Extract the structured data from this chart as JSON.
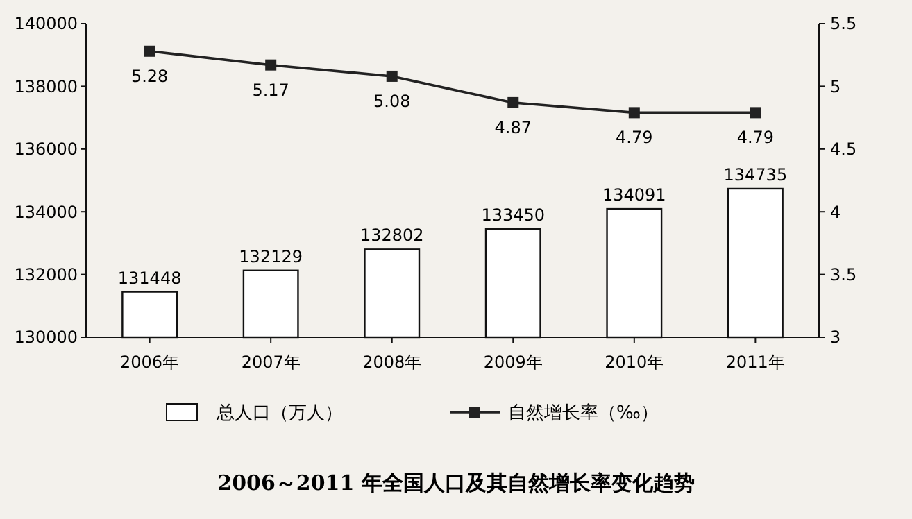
{
  "chart_data": {
    "type": "bar",
    "title": "2006～2011 年全国人口及其自然增长率变化趋势",
    "categories": [
      "2006年",
      "2007年",
      "2008年",
      "2009年",
      "2010年",
      "2011年"
    ],
    "series": [
      {
        "name": "总人口（万人）",
        "color": "#ffffff",
        "values": [
          131448,
          132129,
          132802,
          133450,
          134091,
          134735
        ]
      },
      {
        "name": "自然增长率（‰）",
        "type": "line",
        "axis": "y2",
        "color": "#222222",
        "values": [
          5.28,
          5.17,
          5.08,
          4.87,
          4.79,
          4.79
        ]
      }
    ],
    "ylim": [
      130000,
      140000
    ],
    "yticks": [
      130000,
      132000,
      134000,
      136000,
      138000,
      140000
    ],
    "y2lim": [
      3,
      5.5
    ],
    "y2ticks": [
      3,
      3.5,
      4,
      4.5,
      5,
      5.5
    ],
    "data_labels": true,
    "legend": "bottom",
    "marker": "square",
    "grid": false
  }
}
